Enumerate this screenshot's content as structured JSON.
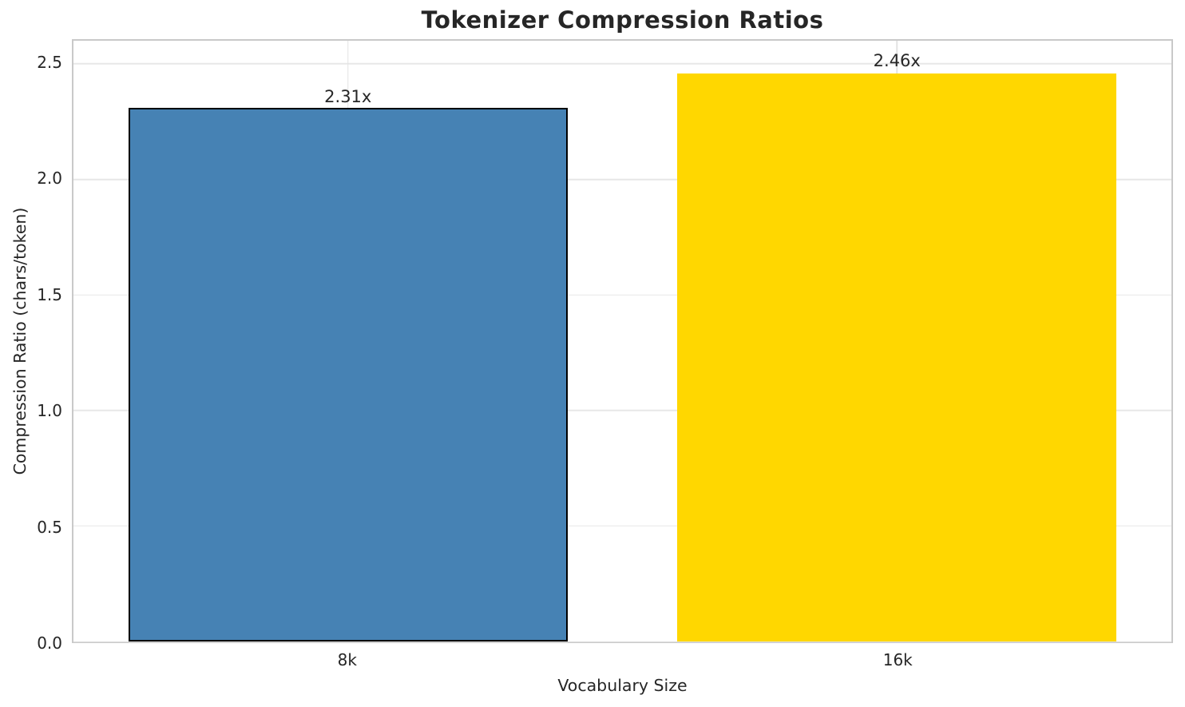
{
  "chart_data": {
    "type": "bar",
    "title": "Tokenizer Compression Ratios",
    "xlabel": "Vocabulary Size",
    "ylabel": "Compression Ratio (chars/token)",
    "categories": [
      "8k",
      "16k"
    ],
    "values": [
      2.31,
      2.46
    ],
    "bar_labels": [
      "2.31x",
      "2.46x"
    ],
    "bar_colors": [
      "#4682b4",
      "#ffd700"
    ],
    "bar_edge_colors": [
      "#000000",
      "none"
    ],
    "ylim": [
      0,
      2.6
    ],
    "yticks": [
      0,
      0.5,
      1,
      1.5,
      2,
      2.5
    ],
    "ytick_labels": [
      "0.0",
      "0.5",
      "1.0",
      "1.5",
      "2.0",
      "2.5"
    ],
    "grid": true,
    "legend": false,
    "bar_width_frac": 0.8
  },
  "colors": {
    "text": "#262626",
    "grid_h": "#e7e7e7",
    "grid_v": "#e3e3e3",
    "spine": "#c9c9c9",
    "background": "#ffffff"
  }
}
